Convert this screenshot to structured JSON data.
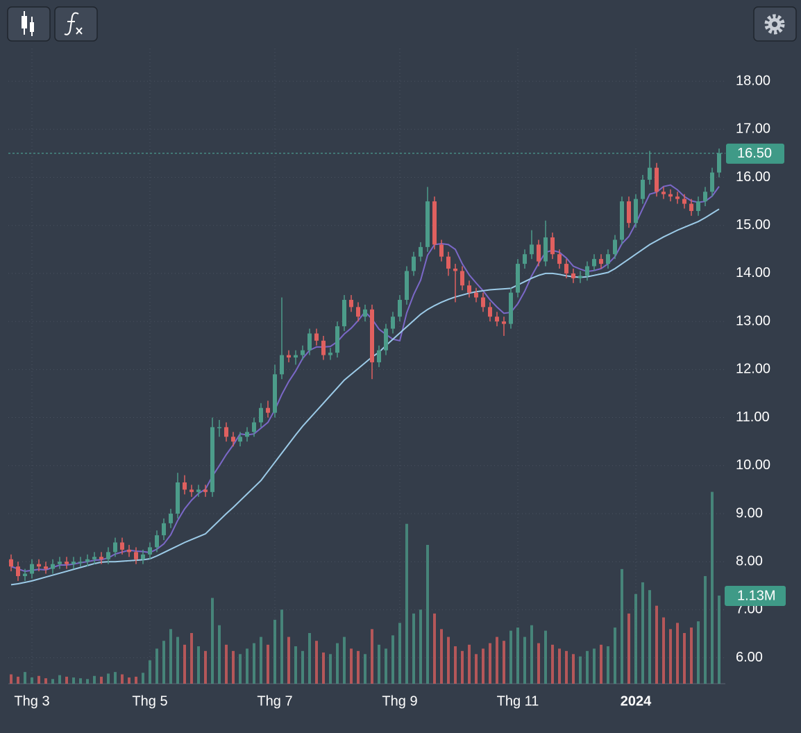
{
  "chart_data": {
    "type": "candlestick",
    "categories": [
      null,
      null,
      null,
      "Thg 3",
      null,
      null,
      null,
      null,
      null,
      null,
      null,
      null,
      null,
      null,
      null,
      null,
      null,
      null,
      null,
      null,
      "Thg 5",
      null,
      null,
      null,
      null,
      null,
      null,
      null,
      null,
      null,
      null,
      null,
      null,
      null,
      null,
      null,
      null,
      null,
      "Thg 7",
      null,
      null,
      null,
      null,
      null,
      null,
      null,
      null,
      null,
      null,
      null,
      null,
      null,
      null,
      null,
      null,
      null,
      "Thg 9",
      null,
      null,
      null,
      null,
      null,
      null,
      null,
      null,
      null,
      null,
      null,
      null,
      null,
      null,
      null,
      null,
      "Thg 11",
      null,
      null,
      null,
      null,
      null,
      null,
      null,
      null,
      null,
      null,
      null,
      null,
      null,
      null,
      null,
      null,
      "2024",
      null,
      null,
      null,
      null,
      null,
      null,
      null,
      null,
      null,
      null,
      null,
      null
    ],
    "open": [
      8.05,
      7.9,
      7.7,
      7.75,
      7.95,
      7.9,
      7.85,
      7.95,
      8.0,
      7.95,
      8.0,
      8.0,
      8.05,
      8.1,
      8.05,
      8.2,
      8.4,
      8.25,
      8.2,
      8.05,
      8.15,
      8.3,
      8.55,
      8.8,
      9.0,
      9.65,
      9.5,
      9.45,
      9.5,
      9.45,
      10.8,
      10.8,
      10.6,
      10.5,
      10.6,
      10.7,
      10.9,
      11.2,
      11.1,
      11.9,
      12.3,
      12.25,
      12.3,
      12.4,
      12.75,
      12.6,
      12.3,
      12.35,
      12.9,
      13.45,
      13.3,
      13.1,
      13.25,
      12.15,
      12.4,
      12.85,
      13.1,
      13.45,
      14.05,
      14.35,
      14.55,
      15.5,
      14.6,
      14.35,
      14.1,
      14.05,
      13.75,
      13.6,
      13.5,
      13.3,
      13.1,
      13.0,
      12.95,
      13.6,
      14.2,
      14.4,
      14.6,
      14.25,
      14.75,
      14.4,
      14.2,
      14.0,
      13.9,
      13.95,
      14.15,
      14.3,
      14.2,
      14.4,
      14.7,
      15.5,
      15.05,
      15.55,
      15.95,
      16.2,
      15.7,
      15.65,
      15.6,
      15.55,
      15.45,
      15.3,
      15.5,
      15.7,
      16.1
    ],
    "high": [
      8.15,
      8.0,
      7.85,
      8.05,
      8.05,
      8.0,
      8.05,
      8.1,
      8.1,
      8.1,
      8.1,
      8.15,
      8.2,
      8.2,
      8.3,
      8.5,
      8.5,
      8.35,
      8.3,
      8.25,
      8.4,
      8.65,
      8.9,
      9.1,
      9.85,
      9.8,
      9.6,
      9.6,
      9.6,
      11.0,
      10.95,
      10.9,
      10.7,
      10.7,
      10.8,
      11.0,
      11.3,
      11.35,
      12.1,
      13.5,
      12.4,
      12.4,
      12.5,
      12.85,
      12.85,
      12.7,
      12.45,
      13.0,
      13.55,
      13.55,
      13.4,
      13.35,
      13.35,
      12.5,
      12.95,
      13.2,
      13.55,
      14.15,
      14.45,
      14.65,
      15.8,
      15.6,
      14.7,
      14.45,
      14.2,
      14.15,
      13.85,
      13.7,
      13.6,
      13.4,
      13.2,
      13.1,
      13.7,
      14.3,
      14.5,
      14.9,
      14.7,
      15.1,
      14.85,
      14.5,
      14.3,
      14.1,
      14.05,
      14.25,
      14.4,
      14.4,
      14.5,
      14.8,
      15.6,
      15.6,
      15.65,
      16.05,
      16.55,
      16.3,
      15.8,
      15.75,
      15.7,
      15.65,
      15.55,
      15.6,
      15.8,
      16.2,
      16.6
    ],
    "low": [
      7.8,
      7.6,
      7.6,
      7.65,
      7.8,
      7.75,
      7.75,
      7.85,
      7.85,
      7.85,
      7.9,
      7.9,
      7.95,
      7.95,
      7.95,
      8.1,
      8.15,
      8.1,
      7.95,
      7.95,
      8.05,
      8.2,
      8.45,
      8.7,
      8.9,
      9.4,
      9.35,
      9.35,
      9.35,
      9.35,
      10.6,
      10.5,
      10.4,
      10.4,
      10.5,
      10.6,
      10.8,
      11.0,
      11.0,
      11.8,
      12.15,
      12.1,
      12.2,
      12.3,
      12.5,
      12.2,
      12.2,
      12.25,
      12.8,
      13.2,
      13.0,
      13.0,
      11.8,
      12.05,
      12.3,
      12.75,
      13.0,
      13.35,
      13.95,
      14.25,
      14.45,
      14.5,
      14.25,
      13.95,
      13.4,
      13.65,
      13.5,
      13.4,
      13.2,
      13.0,
      12.9,
      12.7,
      12.85,
      13.5,
      14.1,
      14.3,
      14.15,
      14.15,
      14.3,
      14.1,
      13.9,
      13.8,
      13.8,
      13.85,
      14.05,
      14.1,
      14.1,
      14.3,
      14.6,
      14.95,
      14.95,
      15.45,
      15.85,
      15.6,
      15.55,
      15.5,
      15.45,
      15.35,
      15.2,
      15.2,
      15.4,
      15.6,
      16.0
    ],
    "close": [
      7.9,
      7.7,
      7.75,
      7.95,
      7.9,
      7.85,
      7.95,
      8.0,
      7.95,
      8.0,
      8.0,
      8.05,
      8.1,
      8.05,
      8.2,
      8.4,
      8.25,
      8.2,
      8.05,
      8.15,
      8.3,
      8.55,
      8.8,
      9.0,
      9.65,
      9.5,
      9.45,
      9.5,
      9.45,
      10.8,
      10.8,
      10.6,
      10.5,
      10.6,
      10.7,
      10.9,
      11.2,
      11.1,
      11.9,
      12.3,
      12.25,
      12.3,
      12.4,
      12.75,
      12.6,
      12.3,
      12.35,
      12.9,
      13.45,
      13.3,
      13.1,
      13.25,
      12.15,
      12.4,
      12.85,
      13.1,
      13.45,
      14.05,
      14.35,
      14.55,
      15.5,
      14.6,
      14.35,
      14.1,
      14.05,
      13.75,
      13.6,
      13.5,
      13.3,
      13.1,
      13.0,
      12.95,
      13.6,
      14.2,
      14.4,
      14.6,
      14.25,
      14.75,
      14.4,
      14.2,
      14.0,
      13.9,
      13.95,
      14.15,
      14.3,
      14.2,
      14.4,
      14.7,
      15.5,
      15.05,
      15.55,
      15.95,
      16.2,
      15.7,
      15.65,
      15.6,
      15.55,
      15.45,
      15.3,
      15.5,
      15.7,
      16.1,
      16.5
    ],
    "volume": [
      120000,
      90000,
      150000,
      80000,
      100000,
      70000,
      60000,
      110000,
      90000,
      80000,
      70000,
      60000,
      100000,
      90000,
      130000,
      150000,
      120000,
      80000,
      90000,
      140000,
      300000,
      450000,
      550000,
      700000,
      600000,
      500000,
      650000,
      480000,
      420000,
      1100000,
      750000,
      500000,
      420000,
      380000,
      450000,
      520000,
      600000,
      500000,
      820000,
      950000,
      600000,
      480000,
      420000,
      650000,
      550000,
      400000,
      380000,
      520000,
      600000,
      450000,
      420000,
      380000,
      700000,
      500000,
      450000,
      620000,
      780000,
      2050000,
      900000,
      950000,
      1780000,
      900000,
      700000,
      600000,
      480000,
      420000,
      500000,
      380000,
      450000,
      520000,
      600000,
      550000,
      680000,
      720000,
      600000,
      750000,
      520000,
      680000,
      500000,
      450000,
      420000,
      380000,
      350000,
      420000,
      450000,
      500000,
      480000,
      720000,
      1470000,
      900000,
      1150000,
      1300000,
      1200000,
      1000000,
      850000,
      700000,
      780000,
      650000,
      720000,
      800000,
      1380000,
      2460000,
      1130000
    ],
    "ma": [
      {
        "color": "#7b68c8",
        "values": [
          7.9,
          7.85,
          7.8,
          7.82,
          7.84,
          7.83,
          7.88,
          7.93,
          7.93,
          7.95,
          7.98,
          8.0,
          8.03,
          8.04,
          8.08,
          8.16,
          8.2,
          8.24,
          8.22,
          8.21,
          8.19,
          8.26,
          8.37,
          8.56,
          8.86,
          9.1,
          9.28,
          9.42,
          9.51,
          9.78,
          10.0,
          10.23,
          10.43,
          10.66,
          10.64,
          10.66,
          10.78,
          10.9,
          11.16,
          11.48,
          11.75,
          11.97,
          12.23,
          12.4,
          12.47,
          12.47,
          12.48,
          12.58,
          12.74,
          12.86,
          13.02,
          13.2,
          13.05,
          12.84,
          12.73,
          12.63,
          12.6,
          13.18,
          13.56,
          13.86,
          14.38,
          14.6,
          14.62,
          14.6,
          14.5,
          14.2,
          13.97,
          13.8,
          13.64,
          13.45,
          13.3,
          13.17,
          13.19,
          13.37,
          13.63,
          13.95,
          14.21,
          14.44,
          14.48,
          14.44,
          14.32,
          14.15,
          14.09,
          14.04,
          14.06,
          14.1,
          14.2,
          14.35,
          14.62,
          14.77,
          15.04,
          15.35,
          15.65,
          15.69,
          15.81,
          15.84,
          15.74,
          15.6,
          15.51,
          15.48,
          15.5,
          15.61,
          15.81
        ]
      },
      {
        "color": "#9ccbe8",
        "values": [
          7.52,
          7.54,
          7.57,
          7.6,
          7.64,
          7.68,
          7.72,
          7.76,
          7.8,
          7.84,
          7.88,
          7.92,
          7.96,
          7.99,
          8.0,
          8.0,
          8.01,
          8.02,
          8.03,
          8.04,
          8.06,
          8.12,
          8.19,
          8.26,
          8.33,
          8.4,
          8.46,
          8.52,
          8.58,
          8.72,
          8.86,
          9.0,
          9.13,
          9.27,
          9.41,
          9.55,
          9.69,
          9.88,
          10.07,
          10.26,
          10.45,
          10.64,
          10.82,
          10.98,
          11.14,
          11.3,
          11.46,
          11.62,
          11.78,
          11.9,
          12.02,
          12.14,
          12.26,
          12.36,
          12.5,
          12.63,
          12.76,
          12.89,
          13.02,
          13.15,
          13.25,
          13.33,
          13.4,
          13.46,
          13.51,
          13.55,
          13.59,
          13.62,
          13.64,
          13.66,
          13.67,
          13.68,
          13.69,
          13.76,
          13.83,
          13.9,
          13.96,
          14.0,
          14.0,
          13.98,
          13.95,
          13.93,
          13.92,
          13.93,
          13.96,
          13.99,
          14.02,
          14.1,
          14.2,
          14.3,
          14.4,
          14.5,
          14.6,
          14.68,
          14.76,
          14.83,
          14.9,
          14.96,
          15.02,
          15.08,
          15.16,
          15.25,
          15.34
        ]
      }
    ],
    "up_color": "#4c9c8a",
    "down_color": "#e0605f",
    "ylim": [
      5.46,
      18.68
    ],
    "yticks": [
      {
        "value": 6,
        "label": "6.00"
      },
      {
        "value": 7,
        "label": "7.00"
      },
      {
        "value": 8,
        "label": "8.00"
      },
      {
        "value": 9,
        "label": "9.00"
      },
      {
        "value": 10,
        "label": "10.00"
      },
      {
        "value": 11,
        "label": "11.00"
      },
      {
        "value": 12,
        "label": "12.00"
      },
      {
        "value": 13,
        "label": "13.00"
      },
      {
        "value": 14,
        "label": "14.00"
      },
      {
        "value": 15,
        "label": "15.00"
      },
      {
        "value": 16,
        "label": "16.00"
      },
      {
        "value": 17,
        "label": "17.00"
      },
      {
        "value": 18,
        "label": "18.00"
      }
    ],
    "vlim": [
      0,
      3560000
    ],
    "last_price": {
      "value": 16.5,
      "label": "16.50"
    },
    "last_volume": {
      "value": 1130000,
      "label": "1.13M"
    },
    "grid": true
  }
}
